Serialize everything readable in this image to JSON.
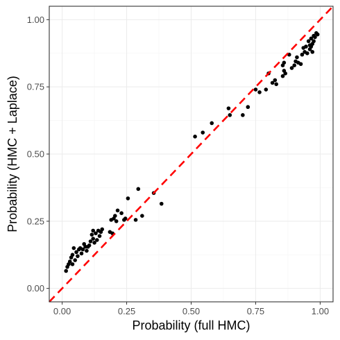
{
  "chart_data": {
    "type": "scatter",
    "title": "",
    "xlabel": "Probability (full HMC)",
    "ylabel": "Probability (HMC + Laplace)",
    "xlim": [
      -0.05,
      1.05
    ],
    "ylim": [
      -0.05,
      1.05
    ],
    "xticks": [
      0.0,
      0.25,
      0.5,
      0.75,
      1.0
    ],
    "yticks": [
      0.0,
      0.25,
      0.5,
      0.75,
      1.0
    ],
    "xtick_labels": [
      "0.00",
      "0.25",
      "0.50",
      "0.75",
      "1.00"
    ],
    "ytick_labels": [
      "0.00",
      "0.25",
      "0.50",
      "0.75",
      "1.00"
    ],
    "grid": true,
    "reference_line": {
      "slope": 1,
      "intercept": 0,
      "style": "dashed",
      "color": "#ff0000"
    },
    "point_color": "#000000",
    "points": [
      [
        0.015,
        0.065
      ],
      [
        0.02,
        0.08
      ],
      [
        0.025,
        0.09
      ],
      [
        0.03,
        0.1
      ],
      [
        0.035,
        0.115
      ],
      [
        0.04,
        0.09
      ],
      [
        0.04,
        0.125
      ],
      [
        0.045,
        0.15
      ],
      [
        0.05,
        0.105
      ],
      [
        0.055,
        0.135
      ],
      [
        0.06,
        0.12
      ],
      [
        0.065,
        0.145
      ],
      [
        0.07,
        0.15
      ],
      [
        0.075,
        0.13
      ],
      [
        0.08,
        0.145
      ],
      [
        0.085,
        0.165
      ],
      [
        0.09,
        0.155
      ],
      [
        0.095,
        0.14
      ],
      [
        0.1,
        0.155
      ],
      [
        0.105,
        0.16
      ],
      [
        0.11,
        0.175
      ],
      [
        0.115,
        0.2
      ],
      [
        0.12,
        0.185
      ],
      [
        0.12,
        0.215
      ],
      [
        0.125,
        0.17
      ],
      [
        0.13,
        0.205
      ],
      [
        0.135,
        0.18
      ],
      [
        0.14,
        0.215
      ],
      [
        0.145,
        0.195
      ],
      [
        0.15,
        0.21
      ],
      [
        0.155,
        0.22
      ],
      [
        0.185,
        0.21
      ],
      [
        0.19,
        0.255
      ],
      [
        0.195,
        0.205
      ],
      [
        0.2,
        0.26
      ],
      [
        0.205,
        0.27
      ],
      [
        0.21,
        0.25
      ],
      [
        0.215,
        0.29
      ],
      [
        0.23,
        0.28
      ],
      [
        0.24,
        0.255
      ],
      [
        0.245,
        0.26
      ],
      [
        0.255,
        0.335
      ],
      [
        0.285,
        0.255
      ],
      [
        0.295,
        0.37
      ],
      [
        0.31,
        0.27
      ],
      [
        0.355,
        0.355
      ],
      [
        0.385,
        0.315
      ],
      [
        0.515,
        0.565
      ],
      [
        0.545,
        0.58
      ],
      [
        0.58,
        0.615
      ],
      [
        0.645,
        0.67
      ],
      [
        0.65,
        0.645
      ],
      [
        0.7,
        0.645
      ],
      [
        0.72,
        0.675
      ],
      [
        0.75,
        0.74
      ],
      [
        0.765,
        0.73
      ],
      [
        0.79,
        0.74
      ],
      [
        0.8,
        0.8
      ],
      [
        0.815,
        0.765
      ],
      [
        0.825,
        0.775
      ],
      [
        0.83,
        0.76
      ],
      [
        0.855,
        0.79
      ],
      [
        0.855,
        0.83
      ],
      [
        0.86,
        0.81
      ],
      [
        0.865,
        0.8
      ],
      [
        0.86,
        0.84
      ],
      [
        0.88,
        0.87
      ],
      [
        0.89,
        0.82
      ],
      [
        0.9,
        0.83
      ],
      [
        0.905,
        0.845
      ],
      [
        0.91,
        0.86
      ],
      [
        0.915,
        0.84
      ],
      [
        0.925,
        0.835
      ],
      [
        0.93,
        0.87
      ],
      [
        0.935,
        0.895
      ],
      [
        0.94,
        0.88
      ],
      [
        0.945,
        0.9
      ],
      [
        0.95,
        0.875
      ],
      [
        0.955,
        0.92
      ],
      [
        0.96,
        0.89
      ],
      [
        0.96,
        0.905
      ],
      [
        0.965,
        0.93
      ],
      [
        0.965,
        0.9
      ],
      [
        0.97,
        0.91
      ],
      [
        0.975,
        0.94
      ],
      [
        0.975,
        0.92
      ],
      [
        0.98,
        0.935
      ],
      [
        0.985,
        0.95
      ],
      [
        0.99,
        0.945
      ],
      [
        0.97,
        0.88
      ]
    ]
  }
}
